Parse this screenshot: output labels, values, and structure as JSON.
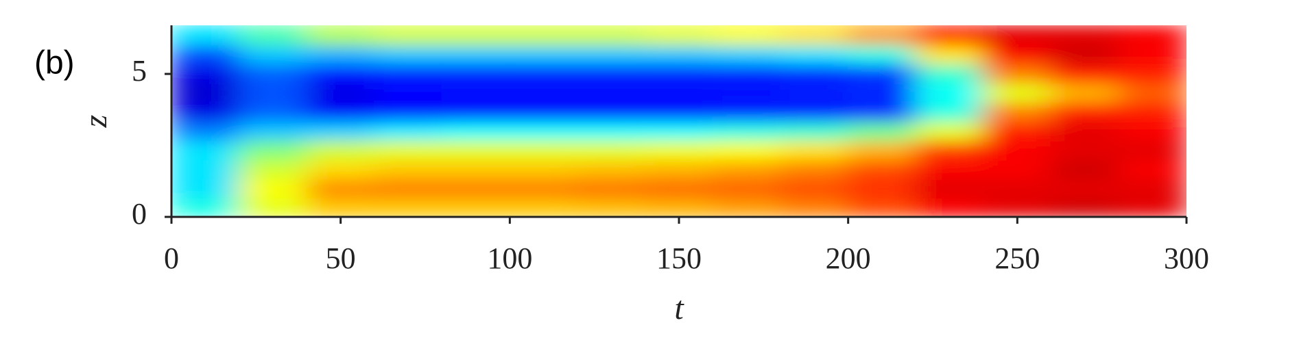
{
  "chart_data": {
    "type": "heatmap",
    "panel_label": "(b)",
    "xlabel": "t",
    "ylabel": "z",
    "x": [
      10,
      30,
      50,
      70,
      90,
      110,
      130,
      150,
      170,
      190,
      210,
      230,
      250,
      270,
      290
    ],
    "y": [
      0.335,
      1.005,
      1.675,
      2.345,
      3.015,
      3.685,
      4.355,
      5.025,
      5.695,
      6.365
    ],
    "z": [
      [
        0.4,
        0.35,
        0.35,
        0.35,
        0.25,
        0.1,
        0.08,
        0.1,
        0.2,
        0.35
      ],
      [
        0.6,
        0.62,
        0.58,
        0.5,
        0.32,
        0.22,
        0.2,
        0.22,
        0.32,
        0.45
      ],
      [
        0.68,
        0.74,
        0.66,
        0.58,
        0.33,
        0.12,
        0.1,
        0.14,
        0.3,
        0.55
      ],
      [
        0.68,
        0.75,
        0.68,
        0.6,
        0.36,
        0.14,
        0.13,
        0.15,
        0.32,
        0.58
      ],
      [
        0.68,
        0.75,
        0.68,
        0.6,
        0.38,
        0.14,
        0.14,
        0.15,
        0.32,
        0.58
      ],
      [
        0.68,
        0.75,
        0.68,
        0.6,
        0.38,
        0.14,
        0.14,
        0.15,
        0.32,
        0.58
      ],
      [
        0.69,
        0.76,
        0.69,
        0.6,
        0.38,
        0.14,
        0.14,
        0.15,
        0.32,
        0.58
      ],
      [
        0.7,
        0.77,
        0.7,
        0.61,
        0.38,
        0.14,
        0.14,
        0.15,
        0.32,
        0.6
      ],
      [
        0.72,
        0.78,
        0.72,
        0.62,
        0.4,
        0.15,
        0.14,
        0.15,
        0.33,
        0.62
      ],
      [
        0.75,
        0.8,
        0.75,
        0.65,
        0.42,
        0.15,
        0.15,
        0.16,
        0.35,
        0.65
      ],
      [
        0.8,
        0.83,
        0.8,
        0.7,
        0.48,
        0.17,
        0.16,
        0.18,
        0.4,
        0.72
      ],
      [
        0.88,
        0.9,
        0.88,
        0.82,
        0.6,
        0.4,
        0.38,
        0.42,
        0.65,
        0.85
      ],
      [
        0.9,
        0.9,
        0.88,
        0.88,
        0.85,
        0.75,
        0.6,
        0.75,
        0.88,
        0.9
      ],
      [
        0.92,
        0.9,
        0.92,
        0.9,
        0.9,
        0.85,
        0.7,
        0.85,
        0.92,
        0.9
      ],
      [
        0.9,
        0.9,
        0.88,
        0.9,
        0.88,
        0.85,
        0.78,
        0.85,
        0.88,
        0.88
      ]
    ],
    "colormap": "jet",
    "clim": [
      0,
      1
    ],
    "xlim": [
      0,
      300
    ],
    "xticks": [
      0,
      50,
      100,
      150,
      200,
      250,
      300
    ],
    "ylim": [
      0,
      6.7
    ],
    "yticks": [
      0,
      5
    ]
  }
}
